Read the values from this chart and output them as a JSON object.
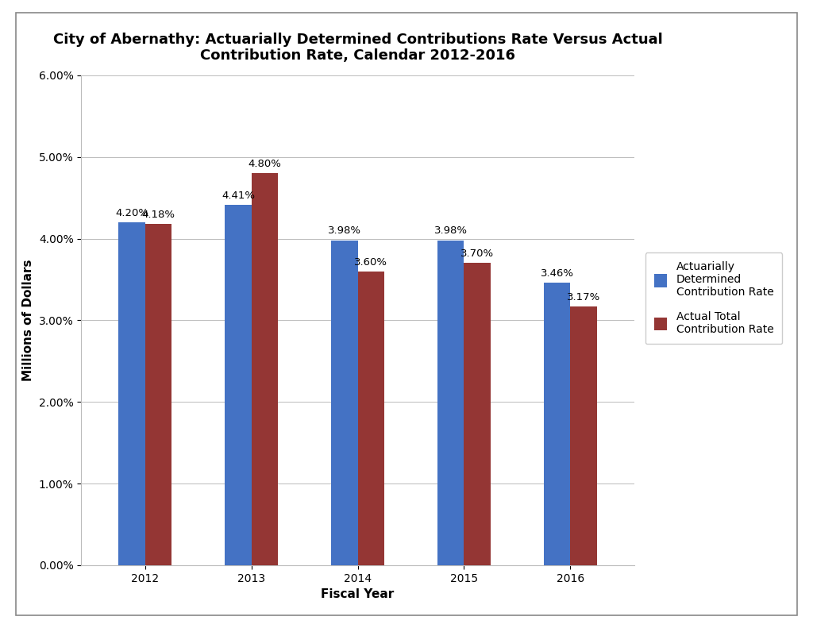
{
  "title": "City of Abernathy: Actuarially Determined Contributions Rate Versus Actual\nContribution Rate, Calendar 2012-2016",
  "xlabel": "Fiscal Year",
  "ylabel": "Millions of Dollars",
  "years": [
    2012,
    2013,
    2014,
    2015,
    2016
  ],
  "adc_values": [
    4.2,
    4.41,
    3.98,
    3.98,
    3.46
  ],
  "actual_values": [
    4.18,
    4.8,
    3.6,
    3.7,
    3.17
  ],
  "adc_labels": [
    "4.20%",
    "4.41%",
    "3.98%",
    "3.98%",
    "3.46%"
  ],
  "actual_labels": [
    "4.18%",
    "4.80%",
    "3.60%",
    "3.70%",
    "3.17%"
  ],
  "adc_color": "#4472C4",
  "actual_color": "#943634",
  "ylim": [
    0.0,
    6.0
  ],
  "yticks": [
    0.0,
    1.0,
    2.0,
    3.0,
    4.0,
    5.0,
    6.0
  ],
  "ytick_labels": [
    "0.00%",
    "1.00%",
    "2.00%",
    "3.00%",
    "4.00%",
    "5.00%",
    "6.00%"
  ],
  "legend_labels": [
    "Actuarially\nDetermined\nContribution Rate",
    "Actual Total\nContribution Rate"
  ],
  "bar_width": 0.25,
  "background_color": "#ffffff",
  "grid_color": "#bbbbbb",
  "title_fontsize": 13,
  "axis_label_fontsize": 11,
  "tick_fontsize": 10,
  "annotation_fontsize": 9.5,
  "legend_fontsize": 10,
  "outer_border_color": "#aaaaaa"
}
